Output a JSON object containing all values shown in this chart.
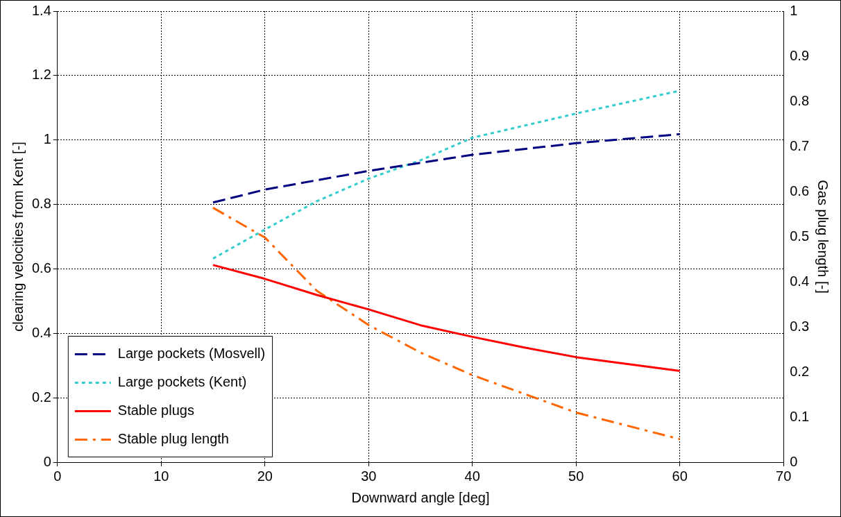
{
  "chart_data": {
    "type": "line",
    "xlabel": "Downward angle [deg]",
    "ylabel": "clearing velocities from Kent [-]",
    "y2label": "Gas plug length [-]",
    "xlim": [
      0,
      70
    ],
    "xticks": [
      0,
      10,
      20,
      30,
      40,
      50,
      60,
      70
    ],
    "ylim": [
      0,
      1.4
    ],
    "yticks": [
      0,
      0.2,
      0.4,
      0.6,
      0.8,
      1,
      1.2,
      1.4
    ],
    "y2lim": [
      0,
      1
    ],
    "y2ticks": [
      0,
      0.1,
      0.2,
      0.3,
      0.4,
      0.5,
      0.6,
      0.7,
      0.8,
      0.9,
      1
    ],
    "grid": true,
    "legend": "bottom left",
    "marker": "none",
    "series": [
      {
        "name": "Large pockets (Mosvell)",
        "color": "#000080",
        "line_style": "dashed",
        "x": [
          15,
          20,
          30,
          40,
          50,
          60
        ],
        "values": [
          0.806,
          0.846,
          0.904,
          0.954,
          0.99,
          1.018
        ]
      },
      {
        "name": "Large pockets (Kent)",
        "color": "#33cccc",
        "line_style": "dotted",
        "x": [
          15,
          20,
          25,
          30,
          35,
          40,
          50,
          60
        ],
        "values": [
          0.632,
          0.722,
          0.81,
          0.88,
          0.937,
          1.007,
          1.082,
          1.153
        ]
      },
      {
        "name": "Stable plugs",
        "color": "#ff0000",
        "line_style": "solid",
        "x": [
          15,
          20,
          25,
          30,
          35,
          40,
          45,
          50,
          60
        ],
        "values": [
          0.612,
          0.569,
          0.519,
          0.474,
          0.425,
          0.389,
          0.356,
          0.326,
          0.283
        ]
      },
      {
        "name": "Stable plug length",
        "color": "#ff6600",
        "line_style": "dashdot",
        "axis": "y2",
        "x": [
          15,
          20,
          25,
          30,
          35,
          40,
          50,
          60
        ],
        "values": [
          0.564,
          0.498,
          0.38,
          0.304,
          0.243,
          0.193,
          0.11,
          0.051
        ]
      }
    ]
  }
}
